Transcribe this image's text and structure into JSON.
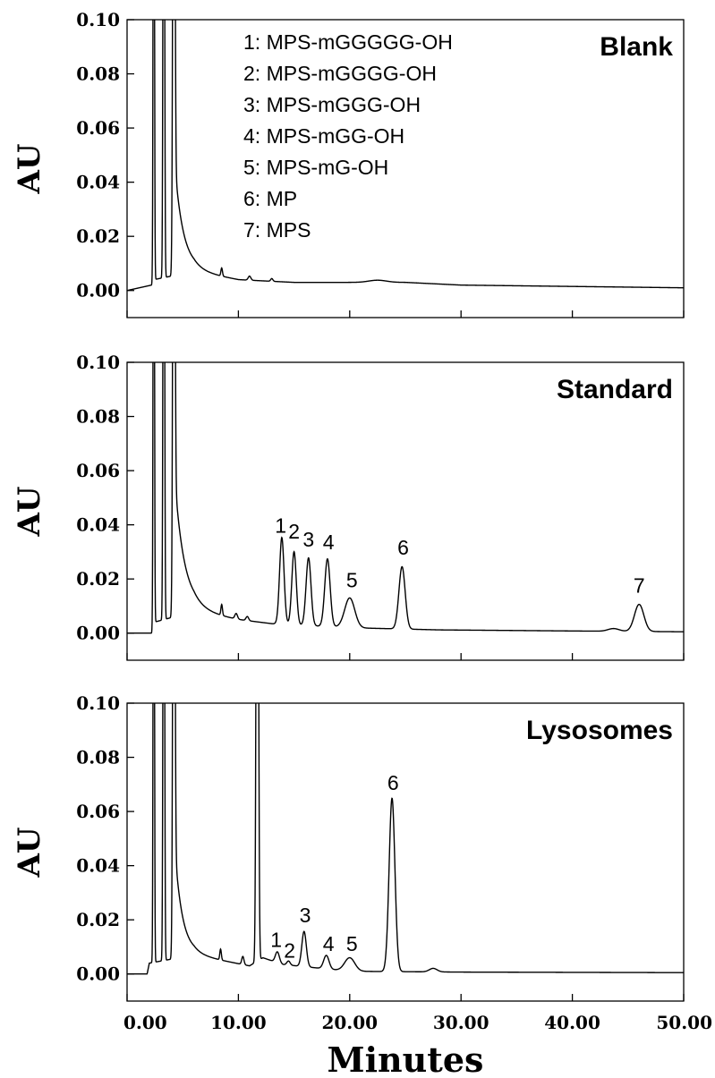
{
  "chart_data": {
    "type": "line",
    "xlabel": "Minutes",
    "xlim": [
      0,
      50
    ],
    "x_ticks": [
      "0.00",
      "10.00",
      "20.00",
      "30.00",
      "40.00",
      "50.00"
    ],
    "x_tick_values": [
      0,
      10,
      20,
      30,
      40,
      50
    ],
    "legend": [
      "1: MPS-mGGGGG-OH",
      "2: MPS-mGGGG-OH",
      "3: MPS-mGGG-OH",
      "4: MPS-mGG-OH",
      "5: MPS-mG-OH",
      "6: MP",
      "7: MPS"
    ],
    "panels": [
      {
        "title": "Blank",
        "ylabel": "AU",
        "ylim": [
          -0.01,
          0.1
        ],
        "y_ticks": [
          "0.00",
          "0.02",
          "0.04",
          "0.06",
          "0.08",
          "0.10"
        ],
        "y_tick_values": [
          0,
          0.02,
          0.04,
          0.06,
          0.08,
          0.1
        ],
        "baseline": [
          [
            0,
            0.0
          ],
          [
            2.2,
            0.002
          ],
          [
            2.4,
            0.004
          ],
          [
            6,
            0.007
          ],
          [
            10,
            0.004
          ],
          [
            15,
            0.003
          ],
          [
            20,
            0.003
          ],
          [
            25,
            0.003
          ],
          [
            30,
            0.002
          ],
          [
            40,
            0.0015
          ],
          [
            50,
            0.001
          ]
        ],
        "tail": {
          "start": 4.3,
          "amplitude": 0.04,
          "tau": 0.8
        },
        "peaks": [
          {
            "rt": 2.4,
            "height": 0.3,
            "width": 0.05
          },
          {
            "rt": 3.3,
            "height": 0.3,
            "width": 0.06
          },
          {
            "rt": 4.2,
            "height": 0.3,
            "width": 0.08
          },
          {
            "rt": 8.5,
            "height": 0.003,
            "width": 0.07
          },
          {
            "rt": 11.0,
            "height": 0.0015,
            "width": 0.12
          },
          {
            "rt": 13.0,
            "height": 0.001,
            "width": 0.1
          },
          {
            "rt": 22.5,
            "height": 0.0008,
            "width": 0.8
          }
        ],
        "labels": []
      },
      {
        "title": "Standard",
        "ylabel": "AU",
        "ylim": [
          -0.01,
          0.1
        ],
        "y_ticks": [
          "0.00",
          "0.02",
          "0.04",
          "0.06",
          "0.08",
          "0.10"
        ],
        "y_tick_values": [
          0,
          0.02,
          0.04,
          0.06,
          0.08,
          0.1
        ],
        "baseline": [
          [
            0,
            0.0
          ],
          [
            2.2,
            0.0
          ],
          [
            2.4,
            0.004
          ],
          [
            6,
            0.008
          ],
          [
            10,
            0.005
          ],
          [
            13,
            0.0035
          ],
          [
            20,
            0.002
          ],
          [
            28,
            0.0012
          ],
          [
            40,
            0.0008
          ],
          [
            50,
            0.0005
          ]
        ],
        "tail": {
          "start": 4.3,
          "amplitude": 0.05,
          "tau": 0.9
        },
        "peaks": [
          {
            "rt": 2.4,
            "height": 0.3,
            "width": 0.05
          },
          {
            "rt": 3.3,
            "height": 0.3,
            "width": 0.06
          },
          {
            "rt": 4.2,
            "height": 0.3,
            "width": 0.08
          },
          {
            "rt": 8.5,
            "height": 0.004,
            "width": 0.07
          },
          {
            "rt": 9.8,
            "height": 0.002,
            "width": 0.12
          },
          {
            "rt": 10.8,
            "height": 0.0015,
            "width": 0.12
          },
          {
            "rt": 13.9,
            "height": 0.032,
            "width": 0.2
          },
          {
            "rt": 15.0,
            "height": 0.027,
            "width": 0.2
          },
          {
            "rt": 16.3,
            "height": 0.025,
            "width": 0.22
          },
          {
            "rt": 18.0,
            "height": 0.025,
            "width": 0.24
          },
          {
            "rt": 20.0,
            "height": 0.011,
            "width": 0.45
          },
          {
            "rt": 24.7,
            "height": 0.023,
            "width": 0.28
          },
          {
            "rt": 43.7,
            "height": 0.001,
            "width": 0.5
          },
          {
            "rt": 46.0,
            "height": 0.01,
            "width": 0.42
          }
        ],
        "labels": [
          {
            "text": "1",
            "x": 13.8,
            "y": 0.037
          },
          {
            "text": "2",
            "x": 15.0,
            "y": 0.035
          },
          {
            "text": "3",
            "x": 16.3,
            "y": 0.032
          },
          {
            "text": "4",
            "x": 18.1,
            "y": 0.031
          },
          {
            "text": "5",
            "x": 20.2,
            "y": 0.017
          },
          {
            "text": "6",
            "x": 24.8,
            "y": 0.029
          },
          {
            "text": "7",
            "x": 46.0,
            "y": 0.015
          }
        ]
      },
      {
        "title": "Lysosomes",
        "ylabel": "AU",
        "ylim": [
          -0.01,
          0.1
        ],
        "y_ticks": [
          "0.00",
          "0.02",
          "0.04",
          "0.06",
          "0.08",
          "0.10"
        ],
        "y_tick_values": [
          0,
          0.02,
          0.04,
          0.06,
          0.08,
          0.1
        ],
        "baseline": [
          [
            0,
            0.0
          ],
          [
            1.8,
            0.0
          ],
          [
            2.0,
            0.004
          ],
          [
            6,
            0.007
          ],
          [
            11,
            0.003
          ],
          [
            12.2,
            0.006
          ],
          [
            14,
            0.0035
          ],
          [
            20,
            0.001
          ],
          [
            30,
            0.0007
          ],
          [
            50,
            0.0005
          ]
        ],
        "tail": {
          "start": 4.3,
          "amplitude": 0.04,
          "tau": 0.7
        },
        "peaks": [
          {
            "rt": 2.4,
            "height": 0.3,
            "width": 0.05
          },
          {
            "rt": 3.3,
            "height": 0.3,
            "width": 0.06
          },
          {
            "rt": 4.2,
            "height": 0.3,
            "width": 0.08
          },
          {
            "rt": 8.4,
            "height": 0.004,
            "width": 0.07
          },
          {
            "rt": 10.4,
            "height": 0.003,
            "width": 0.1
          },
          {
            "rt": 11.7,
            "height": 0.3,
            "width": 0.09
          },
          {
            "rt": 13.5,
            "height": 0.004,
            "width": 0.18
          },
          {
            "rt": 14.5,
            "height": 0.0015,
            "width": 0.15
          },
          {
            "rt": 15.9,
            "height": 0.013,
            "width": 0.2
          },
          {
            "rt": 17.9,
            "height": 0.005,
            "width": 0.24
          },
          {
            "rt": 20.0,
            "height": 0.005,
            "width": 0.45
          },
          {
            "rt": 23.8,
            "height": 0.064,
            "width": 0.26
          },
          {
            "rt": 27.5,
            "height": 0.0013,
            "width": 0.35
          }
        ],
        "labels": [
          {
            "text": "1",
            "x": 13.4,
            "y": 0.01
          },
          {
            "text": "2",
            "x": 14.6,
            "y": 0.006
          },
          {
            "text": "3",
            "x": 16.0,
            "y": 0.019
          },
          {
            "text": "4",
            "x": 18.1,
            "y": 0.0085
          },
          {
            "text": "5",
            "x": 20.2,
            "y": 0.0085
          },
          {
            "text": "6",
            "x": 23.9,
            "y": 0.068
          }
        ]
      }
    ]
  }
}
